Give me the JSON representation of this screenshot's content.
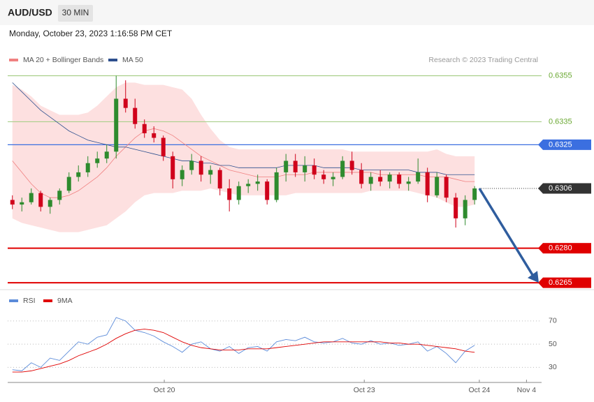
{
  "chart_data": [
    {
      "type": "candlestick",
      "title": "AUD/USD",
      "timeframe": "30 MIN",
      "date": "Monday, October 23, 2023 1:16:58 PM CET",
      "credit": "Research © 2023 Trading Central",
      "xlim": [
        -0.5,
        56.1
      ],
      "ylim": [
        0.6262,
        0.6377
      ],
      "up_color": "#2e8b2e",
      "down_color": "#d0021b",
      "candles": [
        [
          0.6301,
          0.6303,
          0.6297,
          0.6299
        ],
        [
          0.6299,
          0.6302,
          0.6296,
          0.63
        ],
        [
          0.63,
          0.6306,
          0.6299,
          0.6304
        ],
        [
          0.6304,
          0.6305,
          0.6296,
          0.6298
        ],
        [
          0.6298,
          0.6302,
          0.6295,
          0.6301
        ],
        [
          0.6301,
          0.6306,
          0.6299,
          0.6305
        ],
        [
          0.6305,
          0.6313,
          0.6304,
          0.6311
        ],
        [
          0.6311,
          0.6316,
          0.6309,
          0.6313
        ],
        [
          0.6313,
          0.632,
          0.6311,
          0.6317
        ],
        [
          0.6317,
          0.6322,
          0.6315,
          0.6319
        ],
        [
          0.6319,
          0.6325,
          0.6317,
          0.6322
        ],
        [
          0.6322,
          0.6355,
          0.6319,
          0.6345
        ],
        [
          0.6345,
          0.6353,
          0.6339,
          0.6341
        ],
        [
          0.6341,
          0.6345,
          0.6332,
          0.6334
        ],
        [
          0.6334,
          0.6336,
          0.6328,
          0.633
        ],
        [
          0.633,
          0.6333,
          0.6326,
          0.6328
        ],
        [
          0.6328,
          0.6329,
          0.6318,
          0.632
        ],
        [
          0.632,
          0.6322,
          0.6306,
          0.631
        ],
        [
          0.631,
          0.6316,
          0.6307,
          0.6314
        ],
        [
          0.6314,
          0.6321,
          0.6312,
          0.6318
        ],
        [
          0.6318,
          0.632,
          0.6309,
          0.6312
        ],
        [
          0.6312,
          0.6316,
          0.6308,
          0.6314
        ],
        [
          0.6314,
          0.6315,
          0.6303,
          0.6306
        ],
        [
          0.6306,
          0.631,
          0.6296,
          0.6301
        ],
        [
          0.6301,
          0.6309,
          0.6299,
          0.6307
        ],
        [
          0.6307,
          0.631,
          0.6304,
          0.6308
        ],
        [
          0.6308,
          0.6312,
          0.6305,
          0.6309
        ],
        [
          0.6309,
          0.631,
          0.6299,
          0.6301
        ],
        [
          0.6301,
          0.6315,
          0.63,
          0.6313
        ],
        [
          0.6313,
          0.6321,
          0.6309,
          0.6318
        ],
        [
          0.6318,
          0.6321,
          0.6311,
          0.6313
        ],
        [
          0.6313,
          0.632,
          0.6309,
          0.6316
        ],
        [
          0.6316,
          0.6319,
          0.631,
          0.6312
        ],
        [
          0.6312,
          0.6314,
          0.6308,
          0.631
        ],
        [
          0.631,
          0.6313,
          0.6307,
          0.6311
        ],
        [
          0.6311,
          0.632,
          0.631,
          0.6318
        ],
        [
          0.6318,
          0.6322,
          0.6312,
          0.6314
        ],
        [
          0.6314,
          0.6317,
          0.6306,
          0.6308
        ],
        [
          0.6308,
          0.6313,
          0.6305,
          0.6311
        ],
        [
          0.6311,
          0.6314,
          0.6307,
          0.6309
        ],
        [
          0.6309,
          0.6313,
          0.6306,
          0.6312
        ],
        [
          0.6312,
          0.6313,
          0.6306,
          0.6308
        ],
        [
          0.6308,
          0.6311,
          0.6305,
          0.6309
        ],
        [
          0.6309,
          0.6319,
          0.6308,
          0.6313
        ],
        [
          0.6313,
          0.6315,
          0.63,
          0.6303
        ],
        [
          0.6303,
          0.6313,
          0.6302,
          0.6311
        ],
        [
          0.6311,
          0.6312,
          0.63,
          0.6302
        ],
        [
          0.6302,
          0.6304,
          0.6289,
          0.6293
        ],
        [
          0.6293,
          0.6303,
          0.629,
          0.6301
        ],
        [
          0.6301,
          0.6307,
          0.6299,
          0.6306
        ]
      ],
      "series": [
        {
          "name": "MA 20 + Bollinger Bands",
          "color": "#f08080",
          "values": [
            0.6318,
            0.6313,
            0.6308,
            0.6304,
            0.6302,
            0.6302,
            0.6303,
            0.6305,
            0.6308,
            0.6311,
            0.6315,
            0.632,
            0.6324,
            0.6328,
            0.6331,
            0.6332,
            0.6331,
            0.6329,
            0.6326,
            0.6323,
            0.632,
            0.6318,
            0.6316,
            0.6314,
            0.6313,
            0.6312,
            0.6311,
            0.6311,
            0.6311,
            0.6312,
            0.6312,
            0.6312,
            0.6313,
            0.6313,
            0.6313,
            0.6313,
            0.6313,
            0.6313,
            0.6313,
            0.6312,
            0.6312,
            0.6312,
            0.6312,
            0.6312,
            0.6311,
            0.6311,
            0.6311,
            0.631,
            0.6309,
            0.6309
          ]
        },
        {
          "name": "MA 50",
          "color": "#2d4f8e",
          "values": [
            0.6352,
            0.6348,
            0.6344,
            0.634,
            0.6337,
            0.6334,
            0.6331,
            0.6329,
            0.6327,
            0.6326,
            0.6325,
            0.6324,
            0.6324,
            0.6323,
            0.6322,
            0.6321,
            0.632,
            0.6319,
            0.6318,
            0.6318,
            0.6317,
            0.6317,
            0.6316,
            0.6316,
            0.6315,
            0.6315,
            0.6315,
            0.6315,
            0.6315,
            0.6316,
            0.6316,
            0.6316,
            0.6316,
            0.6315,
            0.6315,
            0.6315,
            0.6315,
            0.6314,
            0.6314,
            0.6314,
            0.6314,
            0.6314,
            0.6314,
            0.6313,
            0.6313,
            0.6313,
            0.6312,
            0.6312,
            0.6312,
            0.6312
          ]
        }
      ],
      "bands": {
        "color": "#fde0e0",
        "upper": [
          0.6351,
          0.6349,
          0.6346,
          0.6342,
          0.634,
          0.6338,
          0.6338,
          0.6338,
          0.6339,
          0.6342,
          0.6346,
          0.635,
          0.6352,
          0.6352,
          0.6351,
          0.6351,
          0.6351,
          0.635,
          0.6349,
          0.6345,
          0.6338,
          0.6332,
          0.6327,
          0.6324,
          0.6323,
          0.6323,
          0.6323,
          0.6323,
          0.6323,
          0.6323,
          0.6323,
          0.6323,
          0.6323,
          0.6323,
          0.6323,
          0.6323,
          0.6322,
          0.6322,
          0.6322,
          0.6322,
          0.6322,
          0.6322,
          0.6322,
          0.6322,
          0.6322,
          0.6323,
          0.6321,
          0.632,
          0.632,
          0.632
        ],
        "lower": [
          0.6293,
          0.6291,
          0.629,
          0.6289,
          0.6288,
          0.6287,
          0.6287,
          0.6287,
          0.6288,
          0.6289,
          0.629,
          0.6293,
          0.6296,
          0.63,
          0.6303,
          0.6304,
          0.6304,
          0.6304,
          0.6305,
          0.6305,
          0.6305,
          0.6306,
          0.6305,
          0.6304,
          0.6303,
          0.6303,
          0.6303,
          0.6303,
          0.6303,
          0.6303,
          0.6304,
          0.6304,
          0.6304,
          0.6304,
          0.6304,
          0.6304,
          0.6304,
          0.6304,
          0.6305,
          0.6305,
          0.6305,
          0.6305,
          0.6305,
          0.6304,
          0.6303,
          0.6302,
          0.63,
          0.6298,
          0.6298,
          0.6299
        ]
      },
      "levels": [
        {
          "value": 0.6355,
          "label": "0.6355",
          "color": "#a9cf8a",
          "boxed": false
        },
        {
          "value": 0.6335,
          "label": "0.6335",
          "color": "#a9cf8a",
          "boxed": false
        },
        {
          "value": 0.6325,
          "label": "0.6325",
          "color": "#3b6fe0",
          "boxed": true
        },
        {
          "value": 0.6306,
          "label": "0.6306",
          "color": "#333333",
          "boxed": true,
          "style": "dotted"
        },
        {
          "value": 0.628,
          "label": "0.6280",
          "color": "#e00000",
          "boxed": true
        },
        {
          "value": 0.6265,
          "label": "0.6265",
          "color": "#e00000",
          "boxed": true
        }
      ],
      "arrow": {
        "from": 0.6306,
        "to": 0.6265,
        "color": "#2f5d9e"
      }
    },
    {
      "type": "line",
      "xlim": [
        -0.5,
        56.1
      ],
      "ylim": [
        17,
        97
      ],
      "yticks": [
        30,
        50,
        70
      ],
      "xticks": [
        {
          "value": 16.1,
          "label": "Oct 20"
        },
        {
          "value": 37.3,
          "label": "Oct 23"
        },
        {
          "value": 49.5,
          "label": "Oct 24"
        },
        {
          "value": 54.5,
          "label": "Nov 4"
        }
      ],
      "series": [
        {
          "name": "RSI",
          "color": "#5b8bd9",
          "values": [
            28,
            27,
            34,
            30,
            38,
            36,
            44,
            52,
            50,
            56,
            58,
            73,
            70,
            62,
            60,
            57,
            52,
            48,
            43,
            50,
            52,
            46,
            44,
            48,
            42,
            47,
            48,
            44,
            52,
            54,
            53,
            56,
            52,
            51,
            52,
            55,
            51,
            50,
            53,
            50,
            51,
            49,
            50,
            52,
            44,
            48,
            42,
            34,
            44,
            49
          ]
        },
        {
          "name": "9MA",
          "color": "#e00000",
          "values": [
            26,
            26,
            27,
            29,
            31,
            33,
            36,
            40,
            43,
            46,
            50,
            55,
            59,
            62,
            63,
            62,
            60,
            56,
            52,
            49,
            47,
            46,
            45,
            45,
            45,
            46,
            46,
            46,
            47,
            48,
            49,
            50,
            51,
            52,
            52,
            52,
            52,
            52,
            52,
            52,
            51,
            51,
            50,
            50,
            49,
            48,
            47,
            46,
            44,
            43
          ]
        }
      ]
    }
  ]
}
